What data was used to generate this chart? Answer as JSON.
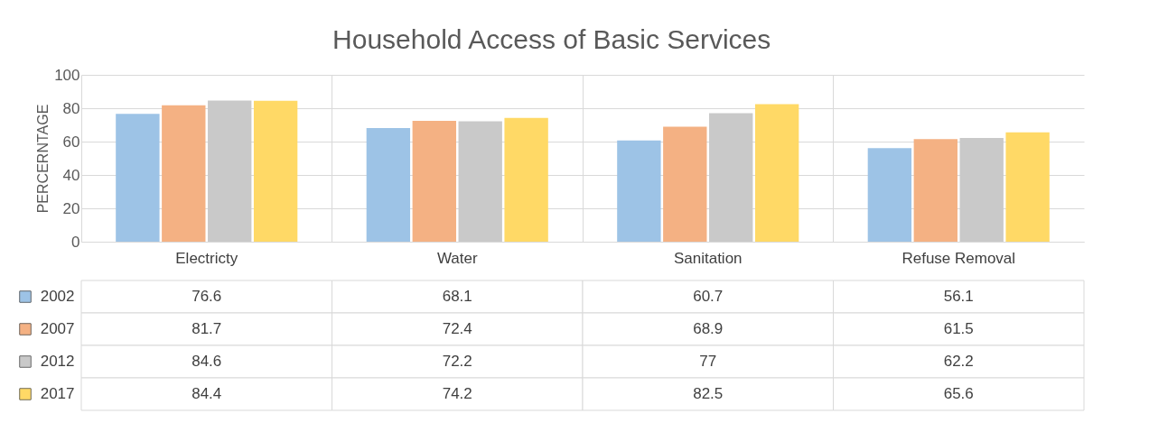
{
  "chart_data": {
    "type": "bar",
    "title": "Household Access of Basic Services",
    "ylabel": "PERCERNTAGE",
    "categories": [
      "Electricty",
      "Water",
      "Sanitation",
      "Refuse Removal"
    ],
    "series": [
      {
        "name": "2002",
        "color": "#9dc3e6",
        "values": [
          76.6,
          68.1,
          60.7,
          56.1
        ]
      },
      {
        "name": "2007",
        "color": "#f4b183",
        "values": [
          81.7,
          72.4,
          68.9,
          61.5
        ]
      },
      {
        "name": "2012",
        "color": "#c9c9c9",
        "values": [
          84.6,
          72.2,
          77,
          62.2
        ]
      },
      {
        "name": "2017",
        "color": "#ffd966",
        "values": [
          84.4,
          74.2,
          82.5,
          65.6
        ]
      }
    ],
    "ylim": [
      0,
      100
    ],
    "yticks": [
      0,
      20,
      40,
      60,
      80,
      100
    ],
    "grid": "y",
    "legend": "bottom",
    "data_labels": true
  }
}
